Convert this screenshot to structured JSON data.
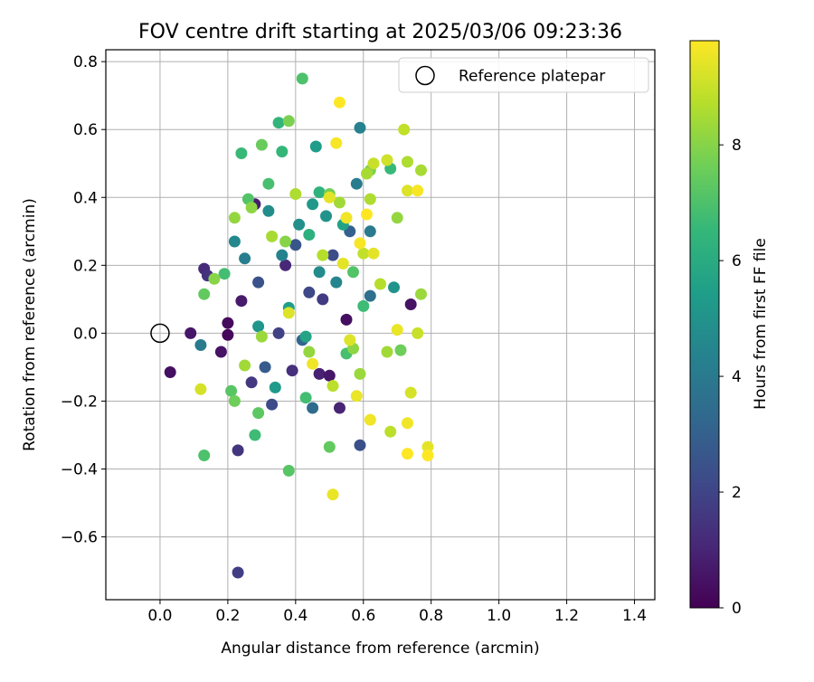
{
  "chart_data": {
    "type": "scatter",
    "title": "FOV centre drift starting at 2025/03/06 09:23:36",
    "xlabel": "Angular distance from reference (arcmin)",
    "ylabel": "Rotation from reference (arcmin)",
    "xlim": [
      -0.16,
      1.46
    ],
    "ylim": [
      -0.785,
      0.835
    ],
    "x_ticks": [
      0.0,
      0.2,
      0.4,
      0.6,
      0.8,
      1.0,
      1.2,
      1.4
    ],
    "x_tick_labels": [
      "0.0",
      "0.2",
      "0.4",
      "0.6",
      "0.8",
      "1.0",
      "1.2",
      "1.4"
    ],
    "y_ticks": [
      -0.6,
      -0.4,
      -0.2,
      0.0,
      0.2,
      0.4,
      0.6,
      0.8
    ],
    "y_tick_labels": [
      "−0.6",
      "−0.4",
      "−0.2",
      "0.0",
      "0.2",
      "0.4",
      "0.6",
      "0.8"
    ],
    "grid": true,
    "legend": {
      "placement": "top-right",
      "entries": [
        "Reference platepar"
      ]
    },
    "reference_point": {
      "x": 0.0,
      "y": 0.0
    },
    "colorbar": {
      "label": "Hours from first FF file",
      "min": 0,
      "max": 9.8,
      "ticks": [
        0,
        2,
        4,
        6,
        8
      ],
      "tick_labels": [
        "0",
        "2",
        "4",
        "6",
        "8"
      ],
      "colormap": "viridis",
      "colors": [
        "#440154",
        "#482878",
        "#3e4a89",
        "#31688e",
        "#26828e",
        "#1f9e89",
        "#35b779",
        "#6ece58",
        "#b5de2b",
        "#fde725"
      ]
    },
    "series": [
      {
        "points": [
          {
            "x": 0.03,
            "y": -0.115,
            "t": 0.4
          },
          {
            "x": 0.09,
            "y": 0.0,
            "t": 0.6
          },
          {
            "x": 0.13,
            "y": 0.19,
            "t": 1.2
          },
          {
            "x": 0.14,
            "y": 0.17,
            "t": 1.4
          },
          {
            "x": 0.18,
            "y": -0.055,
            "t": 0.5
          },
          {
            "x": 0.2,
            "y": 0.03,
            "t": 0.3
          },
          {
            "x": 0.2,
            "y": -0.005,
            "t": 0.2
          },
          {
            "x": 0.23,
            "y": -0.345,
            "t": 1.5
          },
          {
            "x": 0.23,
            "y": -0.705,
            "t": 1.8
          },
          {
            "x": 0.24,
            "y": 0.095,
            "t": 0.7
          },
          {
            "x": 0.27,
            "y": -0.145,
            "t": 1.6
          },
          {
            "x": 0.28,
            "y": 0.38,
            "t": 0.8
          },
          {
            "x": 0.29,
            "y": 0.15,
            "t": 2.5
          },
          {
            "x": 0.31,
            "y": -0.1,
            "t": 2.8
          },
          {
            "x": 0.33,
            "y": -0.21,
            "t": 2.2
          },
          {
            "x": 0.35,
            "y": 0.0,
            "t": 1.9
          },
          {
            "x": 0.37,
            "y": 0.2,
            "t": 1.1
          },
          {
            "x": 0.39,
            "y": -0.11,
            "t": 1.3
          },
          {
            "x": 0.4,
            "y": 0.26,
            "t": 2.6
          },
          {
            "x": 0.42,
            "y": -0.02,
            "t": 3.2
          },
          {
            "x": 0.44,
            "y": 0.12,
            "t": 2.1
          },
          {
            "x": 0.45,
            "y": -0.22,
            "t": 3.4
          },
          {
            "x": 0.47,
            "y": -0.12,
            "t": 0.9
          },
          {
            "x": 0.48,
            "y": 0.1,
            "t": 1.7
          },
          {
            "x": 0.5,
            "y": -0.125,
            "t": 0.6
          },
          {
            "x": 0.51,
            "y": 0.23,
            "t": 2.3
          },
          {
            "x": 0.53,
            "y": -0.22,
            "t": 1.0
          },
          {
            "x": 0.55,
            "y": 0.04,
            "t": 0.4
          },
          {
            "x": 0.56,
            "y": 0.3,
            "t": 3.0
          },
          {
            "x": 0.59,
            "y": -0.33,
            "t": 2.4
          },
          {
            "x": 0.62,
            "y": 0.11,
            "t": 3.6
          },
          {
            "x": 0.74,
            "y": 0.085,
            "t": 0.5
          },
          {
            "x": 0.12,
            "y": -0.035,
            "t": 4.0
          },
          {
            "x": 0.22,
            "y": 0.27,
            "t": 4.6
          },
          {
            "x": 0.25,
            "y": 0.22,
            "t": 4.2
          },
          {
            "x": 0.29,
            "y": 0.02,
            "t": 5.1
          },
          {
            "x": 0.32,
            "y": 0.36,
            "t": 4.8
          },
          {
            "x": 0.34,
            "y": -0.16,
            "t": 5.3
          },
          {
            "x": 0.36,
            "y": 0.23,
            "t": 4.4
          },
          {
            "x": 0.38,
            "y": 0.075,
            "t": 5.5
          },
          {
            "x": 0.41,
            "y": 0.32,
            "t": 4.9
          },
          {
            "x": 0.43,
            "y": -0.01,
            "t": 5.7
          },
          {
            "x": 0.45,
            "y": 0.38,
            "t": 5.2
          },
          {
            "x": 0.46,
            "y": 0.55,
            "t": 5.4
          },
          {
            "x": 0.47,
            "y": 0.18,
            "t": 4.7
          },
          {
            "x": 0.49,
            "y": 0.345,
            "t": 5.0
          },
          {
            "x": 0.52,
            "y": 0.15,
            "t": 4.5
          },
          {
            "x": 0.54,
            "y": 0.32,
            "t": 5.6
          },
          {
            "x": 0.58,
            "y": 0.44,
            "t": 4.1
          },
          {
            "x": 0.59,
            "y": 0.605,
            "t": 4.3
          },
          {
            "x": 0.62,
            "y": 0.3,
            "t": 4.0
          },
          {
            "x": 0.69,
            "y": 0.135,
            "t": 5.0
          },
          {
            "x": 0.13,
            "y": -0.36,
            "t": 7.0
          },
          {
            "x": 0.13,
            "y": 0.115,
            "t": 7.4
          },
          {
            "x": 0.19,
            "y": 0.175,
            "t": 6.8
          },
          {
            "x": 0.21,
            "y": -0.17,
            "t": 7.2
          },
          {
            "x": 0.22,
            "y": -0.2,
            "t": 7.6
          },
          {
            "x": 0.24,
            "y": 0.53,
            "t": 6.6
          },
          {
            "x": 0.26,
            "y": 0.395,
            "t": 7.1
          },
          {
            "x": 0.28,
            "y": -0.3,
            "t": 6.7
          },
          {
            "x": 0.29,
            "y": -0.235,
            "t": 7.3
          },
          {
            "x": 0.3,
            "y": 0.555,
            "t": 7.5
          },
          {
            "x": 0.32,
            "y": 0.44,
            "t": 6.9
          },
          {
            "x": 0.35,
            "y": 0.62,
            "t": 6.4
          },
          {
            "x": 0.36,
            "y": 0.535,
            "t": 6.5
          },
          {
            "x": 0.38,
            "y": -0.405,
            "t": 7.2
          },
          {
            "x": 0.38,
            "y": 0.625,
            "t": 7.8
          },
          {
            "x": 0.42,
            "y": 0.75,
            "t": 7.0
          },
          {
            "x": 0.43,
            "y": -0.19,
            "t": 6.8
          },
          {
            "x": 0.44,
            "y": 0.29,
            "t": 6.2
          },
          {
            "x": 0.47,
            "y": 0.415,
            "t": 6.3
          },
          {
            "x": 0.5,
            "y": -0.335,
            "t": 7.4
          },
          {
            "x": 0.5,
            "y": 0.41,
            "t": 7.7
          },
          {
            "x": 0.55,
            "y": -0.06,
            "t": 6.9
          },
          {
            "x": 0.57,
            "y": 0.18,
            "t": 7.1
          },
          {
            "x": 0.6,
            "y": 0.08,
            "t": 6.7
          },
          {
            "x": 0.62,
            "y": 0.48,
            "t": 7.9
          },
          {
            "x": 0.68,
            "y": 0.485,
            "t": 6.6
          },
          {
            "x": 0.71,
            "y": -0.05,
            "t": 7.6
          },
          {
            "x": 0.16,
            "y": 0.16,
            "t": 8.0
          },
          {
            "x": 0.22,
            "y": 0.34,
            "t": 8.2
          },
          {
            "x": 0.25,
            "y": -0.095,
            "t": 8.4
          },
          {
            "x": 0.27,
            "y": 0.37,
            "t": 8.1
          },
          {
            "x": 0.3,
            "y": -0.01,
            "t": 8.3
          },
          {
            "x": 0.33,
            "y": 0.285,
            "t": 8.5
          },
          {
            "x": 0.37,
            "y": 0.27,
            "t": 8.0
          },
          {
            "x": 0.4,
            "y": 0.41,
            "t": 8.6
          },
          {
            "x": 0.44,
            "y": -0.055,
            "t": 8.2
          },
          {
            "x": 0.48,
            "y": 0.23,
            "t": 8.7
          },
          {
            "x": 0.51,
            "y": -0.155,
            "t": 8.8
          },
          {
            "x": 0.53,
            "y": 0.385,
            "t": 8.4
          },
          {
            "x": 0.57,
            "y": -0.045,
            "t": 8.1
          },
          {
            "x": 0.59,
            "y": -0.12,
            "t": 8.3
          },
          {
            "x": 0.6,
            "y": 0.235,
            "t": 8.9
          },
          {
            "x": 0.61,
            "y": 0.47,
            "t": 8.5
          },
          {
            "x": 0.62,
            "y": 0.395,
            "t": 8.6
          },
          {
            "x": 0.63,
            "y": 0.5,
            "t": 9.0
          },
          {
            "x": 0.65,
            "y": 0.145,
            "t": 8.7
          },
          {
            "x": 0.67,
            "y": 0.51,
            "t": 9.1
          },
          {
            "x": 0.67,
            "y": -0.055,
            "t": 8.4
          },
          {
            "x": 0.68,
            "y": -0.29,
            "t": 8.8
          },
          {
            "x": 0.7,
            "y": 0.34,
            "t": 8.2
          },
          {
            "x": 0.72,
            "y": 0.6,
            "t": 8.9
          },
          {
            "x": 0.73,
            "y": 0.505,
            "t": 8.6
          },
          {
            "x": 0.76,
            "y": 0.0,
            "t": 9.0
          },
          {
            "x": 0.77,
            "y": 0.48,
            "t": 8.5
          },
          {
            "x": 0.77,
            "y": 0.115,
            "t": 8.3
          },
          {
            "x": 0.12,
            "y": -0.165,
            "t": 9.2
          },
          {
            "x": 0.38,
            "y": 0.06,
            "t": 9.3
          },
          {
            "x": 0.45,
            "y": -0.09,
            "t": 9.6
          },
          {
            "x": 0.5,
            "y": 0.4,
            "t": 9.4
          },
          {
            "x": 0.51,
            "y": -0.475,
            "t": 9.5
          },
          {
            "x": 0.52,
            "y": 0.56,
            "t": 9.7
          },
          {
            "x": 0.53,
            "y": 0.68,
            "t": 9.8
          },
          {
            "x": 0.54,
            "y": 0.205,
            "t": 9.4
          },
          {
            "x": 0.55,
            "y": 0.34,
            "t": 9.6
          },
          {
            "x": 0.56,
            "y": -0.02,
            "t": 9.3
          },
          {
            "x": 0.58,
            "y": -0.185,
            "t": 9.5
          },
          {
            "x": 0.59,
            "y": 0.265,
            "t": 9.7
          },
          {
            "x": 0.61,
            "y": 0.35,
            "t": 9.8
          },
          {
            "x": 0.62,
            "y": -0.255,
            "t": 9.6
          },
          {
            "x": 0.63,
            "y": 0.235,
            "t": 9.4
          },
          {
            "x": 0.7,
            "y": 0.01,
            "t": 9.5
          },
          {
            "x": 0.73,
            "y": -0.355,
            "t": 9.8
          },
          {
            "x": 0.73,
            "y": 0.42,
            "t": 9.3
          },
          {
            "x": 0.73,
            "y": -0.265,
            "t": 9.6
          },
          {
            "x": 0.74,
            "y": -0.175,
            "t": 9.2
          },
          {
            "x": 0.76,
            "y": 0.42,
            "t": 9.7
          },
          {
            "x": 0.79,
            "y": -0.335,
            "t": 9.4
          },
          {
            "x": 0.79,
            "y": -0.36,
            "t": 9.8
          }
        ]
      }
    ]
  }
}
